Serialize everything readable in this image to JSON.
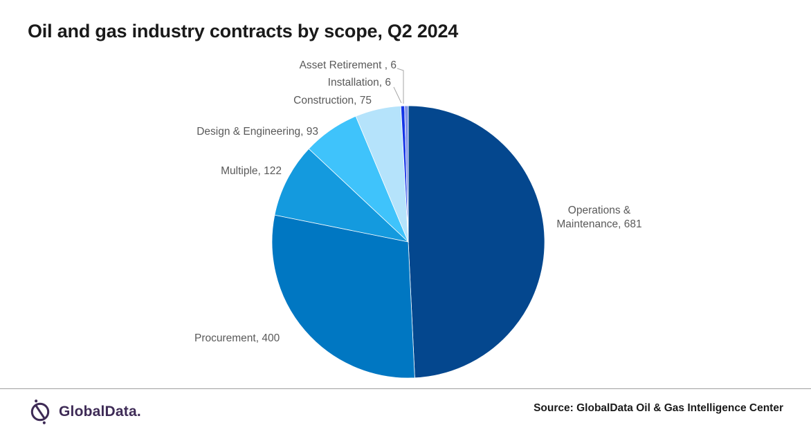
{
  "title": "Oil and gas industry contracts by scope, Q2 2024",
  "source": "Source: GlobalData Oil & Gas Intelligence Center",
  "branding": {
    "logo_text": "GlobalData.",
    "logo_color": "#3e2b56"
  },
  "chart_data": {
    "type": "pie",
    "title": "Oil and gas industry contracts by scope, Q2 2024",
    "total": 1383,
    "start_angle_deg": 0,
    "direction": "clockwise",
    "legend_position": "none",
    "labels_style": "outside-data-labels",
    "slices": [
      {
        "label": "Operations & Maintenance",
        "value": 681,
        "display": "Operations & Maintenance, 681",
        "color": "#04478E"
      },
      {
        "label": "Procurement",
        "value": 400,
        "display": "Procurement, 400",
        "color": "#0077C2"
      },
      {
        "label": "Multiple",
        "value": 122,
        "display": "Multiple, 122",
        "color": "#149ADE"
      },
      {
        "label": "Design & Engineering",
        "value": 93,
        "display": "Design & Engineering, 93",
        "color": "#3FC3FB"
      },
      {
        "label": "Construction",
        "value": 75,
        "display": "Construction, 75",
        "color": "#B5E3FB"
      },
      {
        "label": "Installation",
        "value": 6,
        "display": "Installation, 6",
        "color": "#1334E8"
      },
      {
        "label": "Asset Retirement",
        "value": 6,
        "display": "Asset Retirement , 6",
        "color": "#7E93E8"
      }
    ]
  }
}
